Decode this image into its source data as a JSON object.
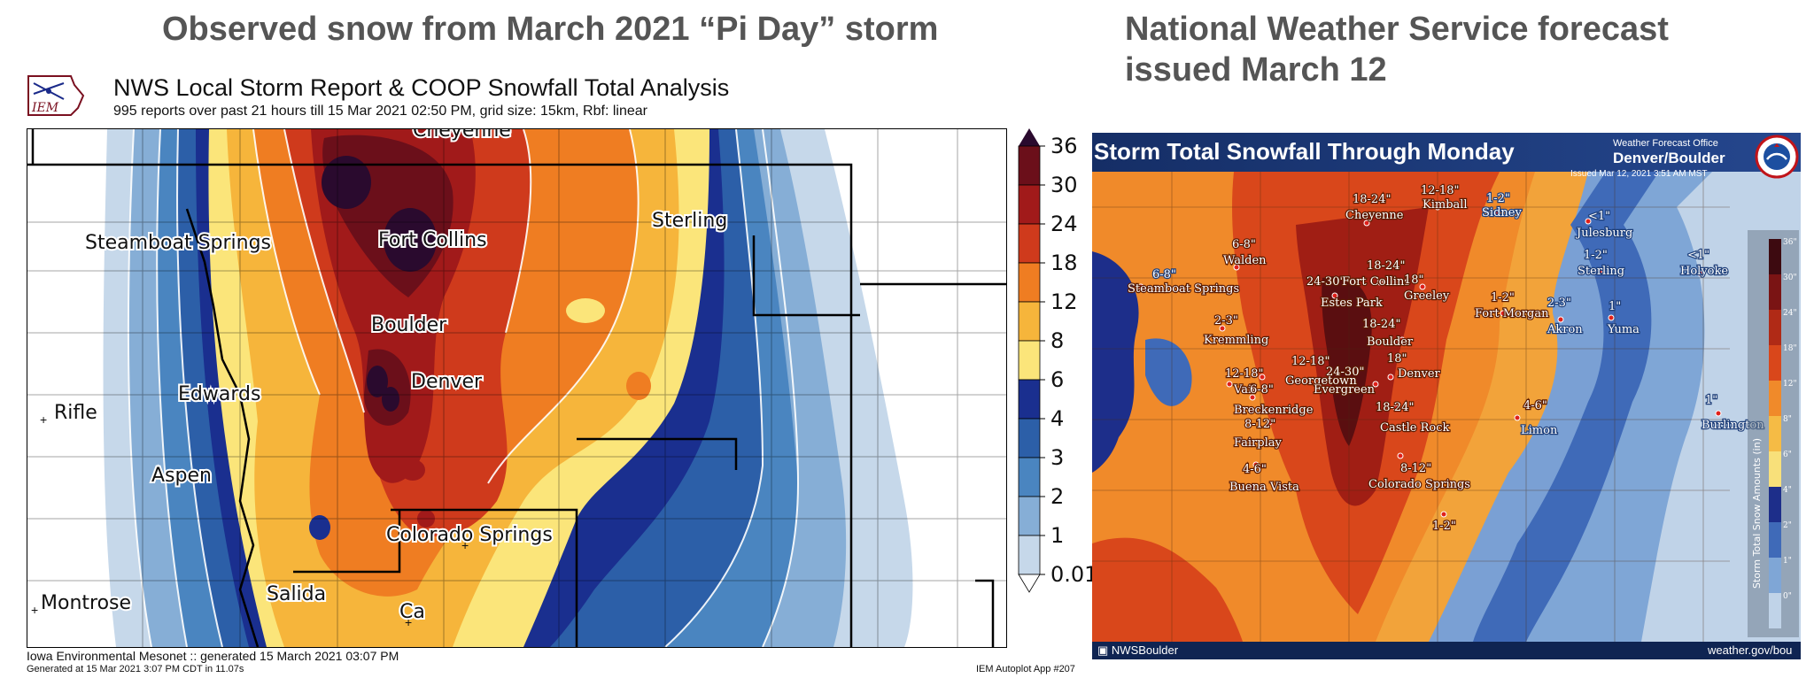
{
  "headings": {
    "left": "Observed snow from March 2021 “Pi Day” storm",
    "right_line1": "National Weather Service forecast",
    "right_line2": "issued March 12"
  },
  "left_panel": {
    "logo_text": "IEM",
    "title": "NWS Local Storm Report & COOP Snowfall Total Analysis",
    "subtitle": "995 reports over past 21 hours till 15 Mar 2021 02:50 PM, grid size: 15km, Rbf: linear",
    "cities": {
      "cheyenne": "Cheyenne",
      "sterling": "Sterling",
      "steamboat": "Steamboat Springs",
      "fort_collins": "Fort Collins",
      "boulder": "Boulder",
      "denver": "Denver",
      "edwards": "Edwards",
      "rifle": "Rifle",
      "aspen": "Aspen",
      "colorado_springs": "Colorado Springs",
      "salida": "Salida",
      "montrose": "Montrose",
      "ca": "Ca"
    },
    "colorbar_labels": [
      "36",
      "30",
      "24",
      "18",
      "12",
      "8",
      "6",
      "4",
      "3",
      "2",
      "1",
      "0.01"
    ],
    "colorbar_colors": [
      "#2a0a2e",
      "#6b0f1a",
      "#a11a1a",
      "#cf3a1c",
      "#ef7d22",
      "#f6b53b",
      "#fbe57a",
      "#1a2f8f",
      "#2c5fa8",
      "#4a85c0",
      "#86aed6",
      "#c6d8ea"
    ],
    "footer_line1": "Iowa Environmental Mesonet :: generated 15 March 2021 03:07 PM",
    "footer_line2": "Generated at 15 Mar 2021 3:07 PM CDT in 11.07s",
    "footer_app": "IEM Autoplot App #207"
  },
  "right_panel": {
    "title": "Storm Total Snowfall Through Monday",
    "office_label": "Weather Forecast Office",
    "office": "Denver/Boulder",
    "issued": "Issued Mar 12, 2021 3:51 AM MST",
    "labels": {
      "kimball_amt": "12-18\"",
      "kimball": "Kimball",
      "cheyenne_amt": "18-24\"",
      "cheyenne": "Cheyenne",
      "sidney_amt": "1-2\"",
      "sidney": "Sidney",
      "julesburg_amt": "<1\"",
      "julesburg": "Julesburg",
      "walden_amt": "6-8\"",
      "walden": "Walden",
      "steamboat_amt": "6-8\"",
      "steamboat": "Steamboat Springs",
      "fc_amt": "18-24\"",
      "estes_amt": "24-30\"",
      "fort_collins": "Fort Collins",
      "greeley_amt": "18\"",
      "greeley": "Greeley",
      "estes_park": "Estes Park",
      "sterling_amt": "1-2\"",
      "sterling": "Sterling",
      "holyoke_amt": "<1\"",
      "holyoke": "Holyoke",
      "fort_morgan_amt": "1-2\"",
      "fort_morgan": "Fort Morgan",
      "akron_amt": "2-3\"",
      "akron": "Akron",
      "yuma_amt": "1\"",
      "yuma": "Yuma",
      "kremmling_amt": "2-3\"",
      "kremmling": "Kremmling",
      "boulder_amt": "18-24\"",
      "boulder": "Boulder",
      "georgetown_amt": "12-18\"",
      "georgetown": "Georgetown",
      "denver_amt": "18\"",
      "denver": "Denver",
      "vail_amt": "12-18\"",
      "vail": "Vail",
      "vail2_amt": "6-8\"",
      "evergreen_amt": "24-30\"",
      "evergreen": "Evergreen",
      "breckenridge": "Breckenridge",
      "breck_amt": "8-12\"",
      "castle_rock_amt": "18-24\"",
      "castle_rock": "Castle Rock",
      "fairplay": "Fairplay",
      "limon_amt": "4-6\"",
      "limon": "Limon",
      "burlington_amt": "1\"",
      "burlington": "Burlington",
      "buena_amt": "4-6\"",
      "buena_vista": "Buena Vista",
      "cos_amt": "8-12\"",
      "colorado_springs": "Colorado Springs",
      "south_amt": "1-2\""
    },
    "legend_title": "Storm Total Snow Amounts (in)",
    "legend_labels": [
      "36\"",
      "30\"",
      "24\"",
      "18\"",
      "12\"",
      "8\"",
      "6\"",
      "4\"",
      "2\"",
      "1\"",
      "0\""
    ],
    "legend_colors": [
      "#3d0a10",
      "#7a1414",
      "#b02a16",
      "#d9471b",
      "#f08a2a",
      "#f5bb45",
      "#f8e07a",
      "#1d2e8a",
      "#3f6ab8",
      "#7fa6d6",
      "#c0d3e8"
    ],
    "social": "NWSBoulder",
    "website": "weather.gov/bou"
  }
}
